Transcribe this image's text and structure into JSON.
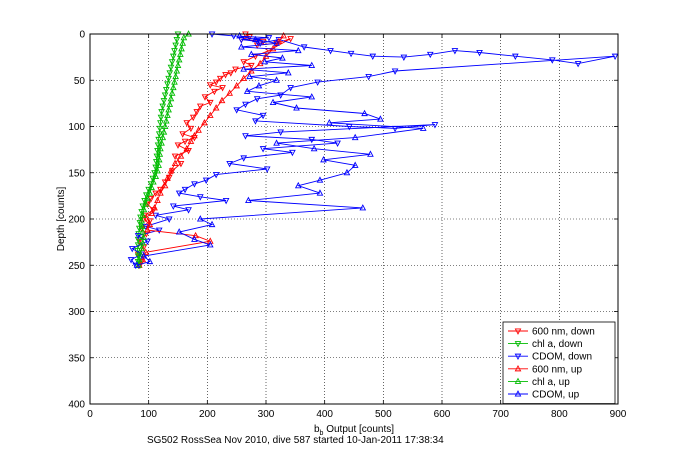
{
  "chart_data": {
    "type": "scatter",
    "title": "",
    "xlabel_main": "b",
    "xlabel_sub": "b",
    "xlabel_rest": " Output [counts]",
    "ylabel": "Depth [counts]",
    "caption": "SG502 RossSea Nov 2010, dive 587 started 10-Jan-2011 17:38:34",
    "xlim": [
      0,
      900
    ],
    "ylim": [
      0,
      400
    ],
    "y_reversed": true,
    "grid": true,
    "legend_position": "bottom-right",
    "xticks": [
      "0",
      "100",
      "200",
      "300",
      "400",
      "500",
      "600",
      "700",
      "800",
      "900"
    ],
    "yticks": [
      "0",
      "50",
      "100",
      "150",
      "200",
      "250",
      "300",
      "350",
      "400"
    ],
    "series": [
      {
        "name": "600 nm, down",
        "color": "#ff0000",
        "marker": "down",
        "points": [
          [
            265,
            0
          ],
          [
            272,
            3
          ],
          [
            258,
            6
          ],
          [
            295,
            8
          ],
          [
            285,
            12
          ],
          [
            318,
            10
          ],
          [
            342,
            5
          ],
          [
            305,
            18
          ],
          [
            282,
            24
          ],
          [
            262,
            30
          ],
          [
            275,
            34
          ],
          [
            248,
            38
          ],
          [
            240,
            42
          ],
          [
            231,
            44
          ],
          [
            222,
            48
          ],
          [
            215,
            52
          ],
          [
            205,
            55
          ],
          [
            226,
            58
          ],
          [
            212,
            62
          ],
          [
            196,
            68
          ],
          [
            205,
            74
          ],
          [
            188,
            78
          ],
          [
            182,
            84
          ],
          [
            176,
            90
          ],
          [
            165,
            96
          ],
          [
            172,
            102
          ],
          [
            158,
            108
          ],
          [
            178,
            112
          ],
          [
            162,
            116
          ],
          [
            150,
            120
          ],
          [
            168,
            126
          ],
          [
            145,
            132
          ],
          [
            155,
            140
          ],
          [
            140,
            148
          ],
          [
            135,
            155
          ],
          [
            128,
            160
          ],
          [
            120,
            168
          ],
          [
            112,
            172
          ],
          [
            104,
            178
          ],
          [
            98,
            184
          ],
          [
            108,
            190
          ],
          [
            94,
            196
          ],
          [
            102,
            202
          ],
          [
            88,
            210
          ],
          [
            96,
            216
          ],
          [
            84,
            224
          ],
          [
            92,
            230
          ],
          [
            82,
            238
          ],
          [
            88,
            246
          ],
          [
            85,
            250
          ]
        ]
      },
      {
        "name": "chl a, down",
        "color": "#00bb00",
        "marker": "down",
        "points": [
          [
            150,
            0
          ],
          [
            148,
            6
          ],
          [
            146,
            12
          ],
          [
            144,
            18
          ],
          [
            142,
            24
          ],
          [
            140,
            30
          ],
          [
            138,
            36
          ],
          [
            136,
            42
          ],
          [
            134,
            48
          ],
          [
            132,
            54
          ],
          [
            130,
            60
          ],
          [
            128,
            66
          ],
          [
            126,
            72
          ],
          [
            124,
            78
          ],
          [
            122,
            84
          ],
          [
            121,
            90
          ],
          [
            120,
            96
          ],
          [
            119,
            102
          ],
          [
            118,
            108
          ],
          [
            117,
            114
          ],
          [
            116,
            120
          ],
          [
            115,
            126
          ],
          [
            114,
            132
          ],
          [
            113,
            138
          ],
          [
            112,
            144
          ],
          [
            110,
            150
          ],
          [
            107,
            156
          ],
          [
            104,
            162
          ],
          [
            100,
            168
          ],
          [
            96,
            174
          ],
          [
            93,
            180
          ],
          [
            90,
            186
          ],
          [
            88,
            192
          ],
          [
            86,
            198
          ],
          [
            85,
            204
          ],
          [
            84,
            210
          ],
          [
            83,
            216
          ],
          [
            82,
            222
          ],
          [
            82,
            228
          ],
          [
            81,
            234
          ],
          [
            82,
            240
          ],
          [
            82,
            246
          ],
          [
            83,
            250
          ]
        ]
      },
      {
        "name": "CDOM, down",
        "color": "#0000ff",
        "marker": "down",
        "points": [
          [
            208,
            0
          ],
          [
            245,
            2
          ],
          [
            305,
            4
          ],
          [
            258,
            6
          ],
          [
            285,
            8
          ],
          [
            290,
            10
          ],
          [
            322,
            6
          ],
          [
            365,
            14
          ],
          [
            410,
            18
          ],
          [
            445,
            21
          ],
          [
            482,
            24
          ],
          [
            535,
            25
          ],
          [
            580,
            22
          ],
          [
            622,
            18
          ],
          [
            664,
            20
          ],
          [
            725,
            24
          ],
          [
            788,
            28
          ],
          [
            832,
            32
          ],
          [
            895,
            24
          ],
          [
            520,
            40
          ],
          [
            475,
            46
          ],
          [
            388,
            52
          ],
          [
            342,
            58
          ],
          [
            325,
            66
          ],
          [
            285,
            70
          ],
          [
            265,
            76
          ],
          [
            250,
            82
          ],
          [
            295,
            88
          ],
          [
            282,
            94
          ],
          [
            442,
            100
          ],
          [
            520,
            102
          ],
          [
            588,
            98
          ],
          [
            325,
            106
          ],
          [
            265,
            110
          ],
          [
            378,
            114
          ],
          [
            422,
            118
          ],
          [
            295,
            124
          ],
          [
            345,
            128
          ],
          [
            262,
            134
          ],
          [
            238,
            140
          ],
          [
            302,
            146
          ],
          [
            215,
            152
          ],
          [
            198,
            158
          ],
          [
            178,
            162
          ],
          [
            162,
            168
          ],
          [
            152,
            172
          ],
          [
            188,
            176
          ],
          [
            232,
            180
          ],
          [
            142,
            186
          ],
          [
            168,
            190
          ],
          [
            112,
            196
          ],
          [
            135,
            200
          ],
          [
            95,
            208
          ],
          [
            118,
            212
          ],
          [
            82,
            218
          ],
          [
            98,
            224
          ],
          [
            72,
            232
          ],
          [
            88,
            238
          ],
          [
            70,
            244
          ],
          [
            78,
            250
          ]
        ]
      },
      {
        "name": "600 nm, up",
        "color": "#ff0000",
        "marker": "up",
        "points": [
          [
            84,
            250
          ],
          [
            90,
            244
          ],
          [
            95,
            236
          ],
          [
            205,
            224
          ],
          [
            180,
            218
          ],
          [
            98,
            212
          ],
          [
            102,
            206
          ],
          [
            92,
            200
          ],
          [
            105,
            194
          ],
          [
            110,
            188
          ],
          [
            115,
            180
          ],
          [
            120,
            172
          ],
          [
            128,
            164
          ],
          [
            132,
            156
          ],
          [
            138,
            148
          ],
          [
            145,
            140
          ],
          [
            155,
            132
          ],
          [
            165,
            124
          ],
          [
            172,
            116
          ],
          [
            178,
            110
          ],
          [
            185,
            104
          ],
          [
            195,
            96
          ],
          [
            205,
            88
          ],
          [
            215,
            80
          ],
          [
            225,
            72
          ],
          [
            238,
            64
          ],
          [
            250,
            56
          ],
          [
            262,
            48
          ],
          [
            275,
            40
          ],
          [
            290,
            32
          ],
          [
            300,
            24
          ],
          [
            312,
            16
          ],
          [
            322,
            8
          ],
          [
            330,
            2
          ]
        ]
      },
      {
        "name": "chl a, up",
        "color": "#00bb00",
        "marker": "up",
        "points": [
          [
            83,
            250
          ],
          [
            84,
            244
          ],
          [
            86,
            238
          ],
          [
            88,
            232
          ],
          [
            90,
            226
          ],
          [
            91,
            220
          ],
          [
            90,
            214
          ],
          [
            89,
            208
          ],
          [
            88,
            202
          ],
          [
            90,
            196
          ],
          [
            92,
            190
          ],
          [
            95,
            184
          ],
          [
            98,
            178
          ],
          [
            102,
            172
          ],
          [
            105,
            166
          ],
          [
            108,
            160
          ],
          [
            112,
            154
          ],
          [
            115,
            148
          ],
          [
            117,
            142
          ],
          [
            118,
            136
          ],
          [
            119,
            130
          ],
          [
            120,
            124
          ],
          [
            122,
            118
          ],
          [
            124,
            112
          ],
          [
            126,
            106
          ],
          [
            128,
            100
          ],
          [
            130,
            94
          ],
          [
            132,
            88
          ],
          [
            134,
            82
          ],
          [
            136,
            76
          ],
          [
            138,
            70
          ],
          [
            140,
            64
          ],
          [
            142,
            58
          ],
          [
            144,
            52
          ],
          [
            146,
            46
          ],
          [
            148,
            40
          ],
          [
            150,
            34
          ],
          [
            152,
            28
          ],
          [
            154,
            22
          ],
          [
            156,
            16
          ],
          [
            158,
            10
          ],
          [
            160,
            4
          ],
          [
            168,
            0
          ]
        ]
      },
      {
        "name": "CDOM, up",
        "color": "#0000ff",
        "marker": "up",
        "points": [
          [
            80,
            250
          ],
          [
            102,
            246
          ],
          [
            92,
            240
          ],
          [
            205,
            228
          ],
          [
            178,
            222
          ],
          [
            152,
            214
          ],
          [
            208,
            206
          ],
          [
            188,
            200
          ],
          [
            465,
            188
          ],
          [
            270,
            180
          ],
          [
            392,
            172
          ],
          [
            355,
            164
          ],
          [
            392,
            158
          ],
          [
            438,
            150
          ],
          [
            452,
            142
          ],
          [
            398,
            136
          ],
          [
            478,
            130
          ],
          [
            382,
            124
          ],
          [
            318,
            118
          ],
          [
            452,
            112
          ],
          [
            568,
            102
          ],
          [
            408,
            96
          ],
          [
            495,
            92
          ],
          [
            468,
            86
          ],
          [
            352,
            80
          ],
          [
            312,
            74
          ],
          [
            378,
            68
          ],
          [
            268,
            62
          ],
          [
            288,
            56
          ],
          [
            318,
            50
          ],
          [
            272,
            46
          ],
          [
            338,
            42
          ],
          [
            262,
            38
          ],
          [
            378,
            34
          ],
          [
            298,
            30
          ],
          [
            328,
            26
          ],
          [
            275,
            22
          ],
          [
            355,
            18
          ],
          [
            258,
            14
          ],
          [
            318,
            10
          ],
          [
            282,
            6
          ],
          [
            255,
            2
          ]
        ]
      }
    ]
  }
}
